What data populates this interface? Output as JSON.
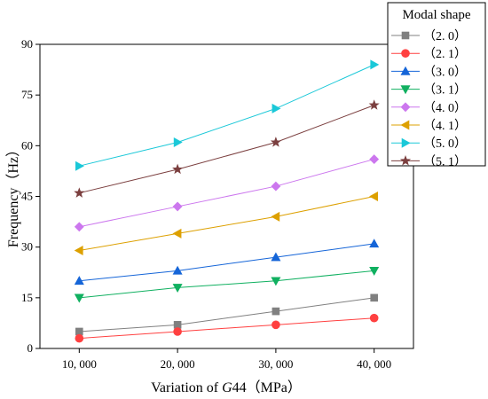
{
  "chart_data": {
    "type": "line",
    "xlabel": "Variation of G44（MPa）",
    "xlabel_parts": {
      "prefix": "Variation of ",
      "italic": "G",
      "suffix": "44（MPa）"
    },
    "ylabel": "Frequency（Hz）",
    "x": [
      10000,
      20000,
      30000,
      40000
    ],
    "xtick_labels": [
      "10, 000",
      "20, 000",
      "30, 000",
      "40, 000"
    ],
    "ylim": [
      0,
      90
    ],
    "yticks": [
      0,
      15,
      30,
      45,
      60,
      75,
      90
    ],
    "grid": false,
    "legend": {
      "title": "Modal shape",
      "placement": "top-right"
    },
    "series": [
      {
        "name": "（2. 0）",
        "color": "#808080",
        "marker": "square",
        "values": [
          5,
          7,
          11,
          15
        ]
      },
      {
        "name": "（2. 1）",
        "color": "#ff4040",
        "marker": "circle",
        "values": [
          3,
          5,
          7,
          9
        ]
      },
      {
        "name": "（3. 0）",
        "color": "#1565d8",
        "marker": "triangle-up",
        "values": [
          20,
          23,
          27,
          31
        ]
      },
      {
        "name": "（3. 1）",
        "color": "#10b060",
        "marker": "triangle-down",
        "values": [
          15,
          18,
          20,
          23
        ]
      },
      {
        "name": "（4. 0）",
        "color": "#cc77ee",
        "marker": "diamond",
        "values": [
          36,
          42,
          48,
          56
        ]
      },
      {
        "name": "（4. 1）",
        "color": "#dda000",
        "marker": "triangle-left",
        "values": [
          29,
          34,
          39,
          45
        ]
      },
      {
        "name": "（5. 0）",
        "color": "#1ac8d8",
        "marker": "triangle-right",
        "values": [
          54,
          61,
          71,
          84
        ]
      },
      {
        "name": "（5. 1）",
        "color": "#7b3f3f",
        "marker": "star",
        "values": [
          46,
          53,
          61,
          72
        ]
      }
    ]
  }
}
